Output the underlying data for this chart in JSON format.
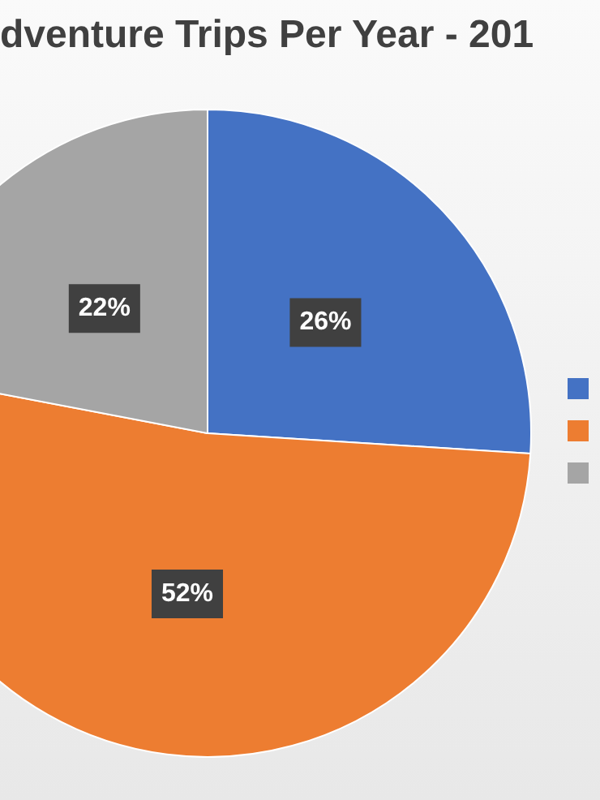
{
  "chart_data": {
    "type": "pie",
    "title": "dventure Trips Per Year - 201",
    "categories": [
      null,
      null,
      null
    ],
    "values": [
      26,
      52,
      22
    ],
    "colors": [
      "#4472c4",
      "#ed7d31",
      "#a5a5a5"
    ],
    "value_labels": [
      "26%",
      "52%",
      "22%"
    ]
  }
}
